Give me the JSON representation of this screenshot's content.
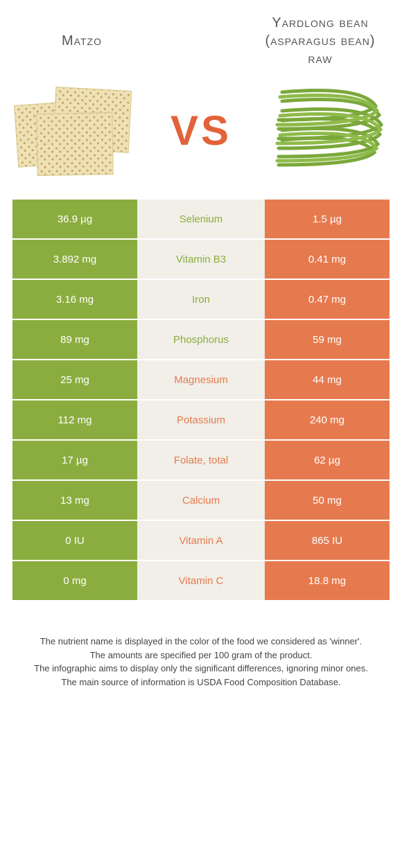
{
  "title_left": "Matzo",
  "title_right": "Yardlong bean (asparagus bean) raw",
  "vs_label": "VS",
  "colors": {
    "left_cell": "#8bad3f",
    "right_cell": "#e67a4f",
    "mid_cell": "#f1efe8",
    "vs": "#e2633a"
  },
  "rows": [
    {
      "left": "36.9 µg",
      "name": "Selenium",
      "right": "1.5 µg",
      "winner": "left"
    },
    {
      "left": "3.892 mg",
      "name": "Vitamin B3",
      "right": "0.41 mg",
      "winner": "left"
    },
    {
      "left": "3.16 mg",
      "name": "Iron",
      "right": "0.47 mg",
      "winner": "left"
    },
    {
      "left": "89 mg",
      "name": "Phosphorus",
      "right": "59 mg",
      "winner": "left"
    },
    {
      "left": "25 mg",
      "name": "Magnesium",
      "right": "44 mg",
      "winner": "right"
    },
    {
      "left": "112 mg",
      "name": "Potassium",
      "right": "240 mg",
      "winner": "right"
    },
    {
      "left": "17 µg",
      "name": "Folate, total",
      "right": "62 µg",
      "winner": "right"
    },
    {
      "left": "13 mg",
      "name": "Calcium",
      "right": "50 mg",
      "winner": "right"
    },
    {
      "left": "0 IU",
      "name": "Vitamin A",
      "right": "865 IU",
      "winner": "right"
    },
    {
      "left": "0 mg",
      "name": "Vitamin C",
      "right": "18.8 mg",
      "winner": "right"
    }
  ],
  "footer": [
    "The nutrient name is displayed in the color of the food we considered as 'winner'.",
    "The amounts are specified per 100 gram of the product.",
    "The infographic aims to display only the significant differences, ignoring minor ones.",
    "The main source of information is USDA Food Composition Database."
  ]
}
